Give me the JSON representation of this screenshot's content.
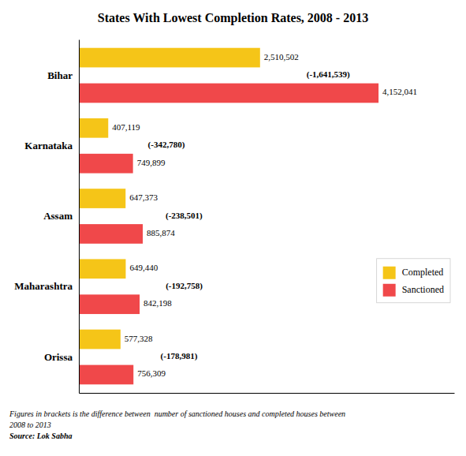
{
  "chart_data": {
    "type": "bar",
    "orientation": "horizontal",
    "title": "States With Lowest Completion Rates, 2008 - 2013",
    "categories": [
      "Bihar",
      "Karnataka",
      "Assam",
      "Maharashtra",
      "Orissa"
    ],
    "series": [
      {
        "name": "Completed",
        "color": "#F5C518",
        "values": [
          2510502,
          407119,
          647373,
          649440,
          577328
        ],
        "value_labels": [
          "2,510,502",
          "407,119",
          "647,373",
          "649,440",
          "577,328"
        ]
      },
      {
        "name": "Sanctioned",
        "color": "#F0484A",
        "values": [
          4152041,
          749899,
          885874,
          842198,
          756309
        ],
        "value_labels": [
          "4,152,041",
          "749,899",
          "885,874",
          "842,198",
          "756,309"
        ]
      }
    ],
    "annotations": [
      "(-1,641,539)",
      "(-342,780)",
      "(-238,501)",
      "(-192,758)",
      "(-178,981)"
    ],
    "footnote": [
      "Figures in brackets is the difference between  number of sanctioned houses and completed houses between",
      "2008 to 2013",
      "Source: Lok Sabha"
    ],
    "xlim": [
      0,
      5200000
    ],
    "tick_labels": "y",
    "data_labels": true,
    "legend": "right"
  }
}
